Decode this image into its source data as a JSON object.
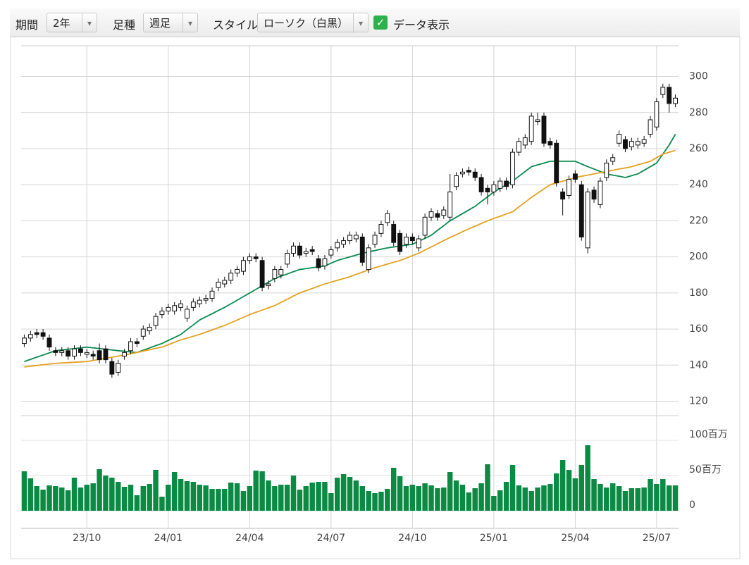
{
  "toolbar": {
    "period_label": "期間",
    "period_value": "2年",
    "bar_label": "足種",
    "bar_value": "週足",
    "style_label": "スタイル",
    "style_value": "ローソク（白黒）",
    "data_label": "データ表示"
  },
  "chart_data": {
    "type": "candlestick",
    "categories": [
      null,
      null,
      null,
      null,
      null,
      null,
      null,
      null,
      null,
      null,
      "23/10",
      null,
      null,
      null,
      null,
      null,
      null,
      null,
      null,
      null,
      null,
      null,
      null,
      "24/01",
      null,
      null,
      null,
      null,
      null,
      null,
      null,
      null,
      null,
      null,
      null,
      null,
      "24/04",
      null,
      null,
      null,
      null,
      null,
      null,
      null,
      null,
      null,
      null,
      null,
      null,
      "24/07",
      null,
      null,
      null,
      null,
      null,
      null,
      null,
      null,
      null,
      null,
      null,
      null,
      "24/10",
      null,
      null,
      null,
      null,
      null,
      null,
      null,
      null,
      null,
      null,
      null,
      null,
      "25/01",
      null,
      null,
      null,
      null,
      null,
      null,
      null,
      null,
      null,
      null,
      null,
      null,
      "25/04",
      null,
      null,
      null,
      null,
      null,
      null,
      null,
      null,
      null,
      null,
      null,
      null,
      "25/07",
      null,
      null,
      null
    ],
    "open": [
      152,
      155,
      158,
      158,
      155,
      148,
      147,
      148,
      145,
      149,
      146,
      146,
      148,
      149,
      142,
      136,
      145,
      148,
      153,
      156,
      159,
      162,
      168,
      170,
      170,
      172,
      166,
      172,
      174,
      176,
      177,
      183,
      185,
      187,
      191,
      192,
      198,
      200,
      198,
      184,
      188,
      190,
      196,
      202,
      206,
      202,
      204,
      199,
      195,
      201,
      205,
      207,
      209,
      210,
      211,
      193,
      207,
      213,
      219,
      218,
      213,
      207,
      211,
      205,
      212,
      222,
      224,
      223,
      222,
      239,
      246,
      248,
      247,
      244,
      238,
      236,
      238,
      242,
      240,
      258,
      262,
      264,
      275,
      278,
      264,
      263,
      236,
      234,
      246,
      240,
      205,
      237,
      229,
      244,
      253,
      263,
      265,
      261,
      262,
      263,
      268,
      272,
      290,
      294,
      285
    ],
    "high": [
      157,
      159,
      160,
      160,
      157,
      150,
      150,
      150,
      151,
      151,
      149,
      148,
      152,
      151,
      144,
      143,
      149,
      155,
      155,
      162,
      163,
      169,
      172,
      174,
      175,
      176,
      173,
      177,
      178,
      179,
      183,
      188,
      189,
      193,
      195,
      200,
      202,
      202,
      200,
      187,
      195,
      195,
      204,
      208,
      208,
      205,
      206,
      201,
      201,
      206,
      210,
      211,
      214,
      214,
      213,
      207,
      214,
      220,
      226,
      220,
      215,
      213,
      213,
      212,
      224,
      227,
      226,
      228,
      246,
      247,
      249,
      250,
      249,
      246,
      240,
      242,
      244,
      244,
      260,
      266,
      268,
      280,
      280,
      280,
      266,
      265,
      238,
      245,
      248,
      242,
      238,
      239,
      244,
      254,
      257,
      270,
      267,
      266,
      266,
      267,
      278,
      288,
      296,
      296,
      290
    ],
    "low": [
      150,
      153,
      155,
      154,
      148,
      145,
      145,
      143,
      143,
      145,
      144,
      143,
      141,
      141,
      133,
      134,
      143,
      146,
      150,
      154,
      157,
      160,
      166,
      168,
      168,
      170,
      164,
      170,
      172,
      174,
      175,
      181,
      183,
      185,
      189,
      190,
      196,
      197,
      181,
      182,
      186,
      188,
      194,
      200,
      199,
      200,
      201,
      192,
      193,
      199,
      203,
      205,
      207,
      208,
      195,
      191,
      205,
      211,
      217,
      206,
      201,
      205,
      207,
      203,
      210,
      220,
      220,
      221,
      220,
      237,
      244,
      245,
      242,
      234,
      229,
      234,
      236,
      237,
      238,
      256,
      260,
      262,
      273,
      261,
      260,
      239,
      223,
      232,
      241,
      209,
      202,
      230,
      227,
      242,
      251,
      261,
      258,
      259,
      260,
      261,
      266,
      270,
      288,
      280,
      283
    ],
    "close": [
      155,
      157,
      157,
      156,
      150,
      147,
      148,
      145,
      149,
      147,
      147,
      145,
      143,
      143,
      135,
      141,
      147,
      153,
      152,
      160,
      161,
      167,
      170,
      172,
      173,
      174,
      171,
      175,
      176,
      177,
      181,
      186,
      187,
      191,
      193,
      198,
      200,
      199,
      183,
      185,
      193,
      193,
      202,
      206,
      201,
      203,
      203,
      194,
      199,
      204,
      208,
      209,
      212,
      212,
      197,
      205,
      212,
      218,
      224,
      208,
      203,
      211,
      209,
      210,
      222,
      225,
      222,
      226,
      236,
      245,
      247,
      247,
      244,
      236,
      236,
      240,
      242,
      239,
      258,
      264,
      266,
      278,
      276,
      263,
      262,
      241,
      232,
      243,
      243,
      211,
      236,
      232,
      242,
      252,
      255,
      268,
      260,
      264,
      264,
      265,
      276,
      286,
      294,
      285,
      288
    ],
    "candle_color": "#111111",
    "moving_averages": [
      {
        "color": "#0a8a50",
        "values": [
          142,
          143.2,
          144.4,
          145.6,
          146.8,
          148,
          148.4,
          148.8,
          149.2,
          149.6,
          150,
          149.6,
          149.2,
          148.8,
          148.4,
          148,
          147.7,
          147.3,
          147,
          148.3,
          149.5,
          150.8,
          152,
          153.7,
          155.3,
          157,
          159.7,
          162.3,
          165,
          166.8,
          168.5,
          170.3,
          172,
          174,
          176,
          178,
          180,
          182,
          184,
          186,
          188,
          189.3,
          190.5,
          191.8,
          193,
          193.5,
          194,
          194.5,
          195,
          196.5,
          198,
          199,
          200,
          201,
          202,
          202.8,
          203.5,
          204.3,
          205,
          205.5,
          206,
          206.5,
          207,
          208.7,
          210.3,
          212,
          214.7,
          217.3,
          220,
          222,
          224,
          226,
          228,
          230.7,
          233.3,
          236,
          238,
          240,
          242,
          244.7,
          247.3,
          250,
          251,
          252,
          253,
          253,
          253,
          253,
          253,
          251.5,
          250,
          248.7,
          247.3,
          246,
          245.3,
          244.7,
          244,
          245,
          246,
          248,
          250,
          252,
          257,
          262,
          268
        ]
      },
      {
        "color": "#e6a020",
        "values": [
          139,
          139.4,
          139.8,
          140.2,
          140.6,
          141,
          141.2,
          141.4,
          141.6,
          141.8,
          142,
          142.6,
          143.2,
          143.8,
          144.4,
          145,
          145.7,
          146.3,
          147,
          147.8,
          148.5,
          149.3,
          150,
          151.3,
          152.7,
          154,
          155,
          156,
          157,
          158.3,
          159.5,
          160.8,
          162,
          163.5,
          165,
          166.5,
          168,
          169.3,
          170.5,
          171.8,
          173,
          174.8,
          176.5,
          178.3,
          180,
          181.3,
          182.5,
          183.8,
          185,
          186,
          187,
          188,
          189,
          190.3,
          191.5,
          192.8,
          194,
          195,
          196,
          197,
          198,
          199.3,
          200.7,
          202,
          203.8,
          205.5,
          207.3,
          209,
          210.7,
          212.3,
          214,
          215.5,
          217,
          218.5,
          220,
          221.3,
          222.5,
          223.8,
          225,
          227.7,
          230.3,
          233,
          235.3,
          237.7,
          240,
          241,
          242,
          243,
          244,
          244.7,
          245.3,
          246,
          246.7,
          247.3,
          248,
          248.7,
          249.3,
          250,
          251,
          252,
          253,
          255,
          257,
          258,
          259
        ]
      }
    ],
    "ylim": [
      112,
      317
    ],
    "yticks": [
      120,
      140,
      160,
      180,
      200,
      220,
      240,
      260,
      280,
      300
    ],
    "volume": [
      56,
      46,
      35,
      30,
      36,
      35,
      33,
      29,
      47,
      33,
      37,
      39,
      59,
      50,
      47,
      41,
      34,
      37,
      22,
      35,
      38,
      58,
      20,
      37,
      55,
      45,
      42,
      41,
      37,
      36,
      31,
      31,
      31,
      40,
      39,
      28,
      35,
      57,
      56,
      43,
      35,
      37,
      37,
      50,
      30,
      35,
      40,
      41,
      41,
      25,
      47,
      52,
      48,
      43,
      35,
      28,
      25,
      27,
      31,
      61,
      49,
      35,
      37,
      35,
      39,
      36,
      32,
      33,
      55,
      43,
      37,
      26,
      32,
      39,
      66,
      21,
      29,
      41,
      65,
      36,
      33,
      28,
      33,
      36,
      38,
      53,
      72,
      58,
      46,
      65,
      93,
      45,
      38,
      33,
      39,
      35,
      28,
      32,
      32,
      33,
      45,
      38,
      45,
      36,
      36
    ],
    "volume_color": "#0b8a44",
    "volume_ylim": [
      0,
      130
    ],
    "volume_yticks": [
      0,
      {
        "value": 50,
        "label": "50百万"
      },
      {
        "value": 100,
        "label": "100百万"
      }
    ],
    "grid": true
  }
}
